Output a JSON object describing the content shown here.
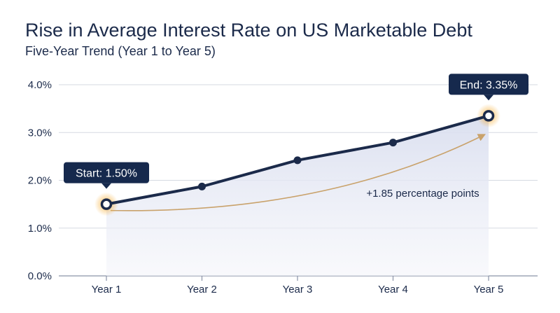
{
  "chart_data": {
    "type": "line",
    "title": "Rise in Average Interest Rate on US Marketable Debt",
    "subtitle": "Five-Year Trend (Year 1 to Year 5)",
    "categories": [
      "Year 1",
      "Year 2",
      "Year 3",
      "Year 4",
      "Year 5"
    ],
    "series": [
      {
        "values": [
          1.5,
          1.87,
          2.42,
          2.79,
          3.35
        ]
      }
    ],
    "ylim": [
      0,
      4
    ],
    "yticks": [
      "0.0%",
      "1.0%",
      "2.0%",
      "3.0%",
      "4.0%"
    ],
    "grid": true,
    "annotations": {
      "start_label": "Start: 1.50%",
      "end_label": "End: 3.35%",
      "change_label": "+1.85 percentage points"
    },
    "colors": {
      "line": "#1b2a4a",
      "arrow": "#c9a26b",
      "glow": "#f5a623",
      "fill": "#e3e7f3"
    }
  }
}
